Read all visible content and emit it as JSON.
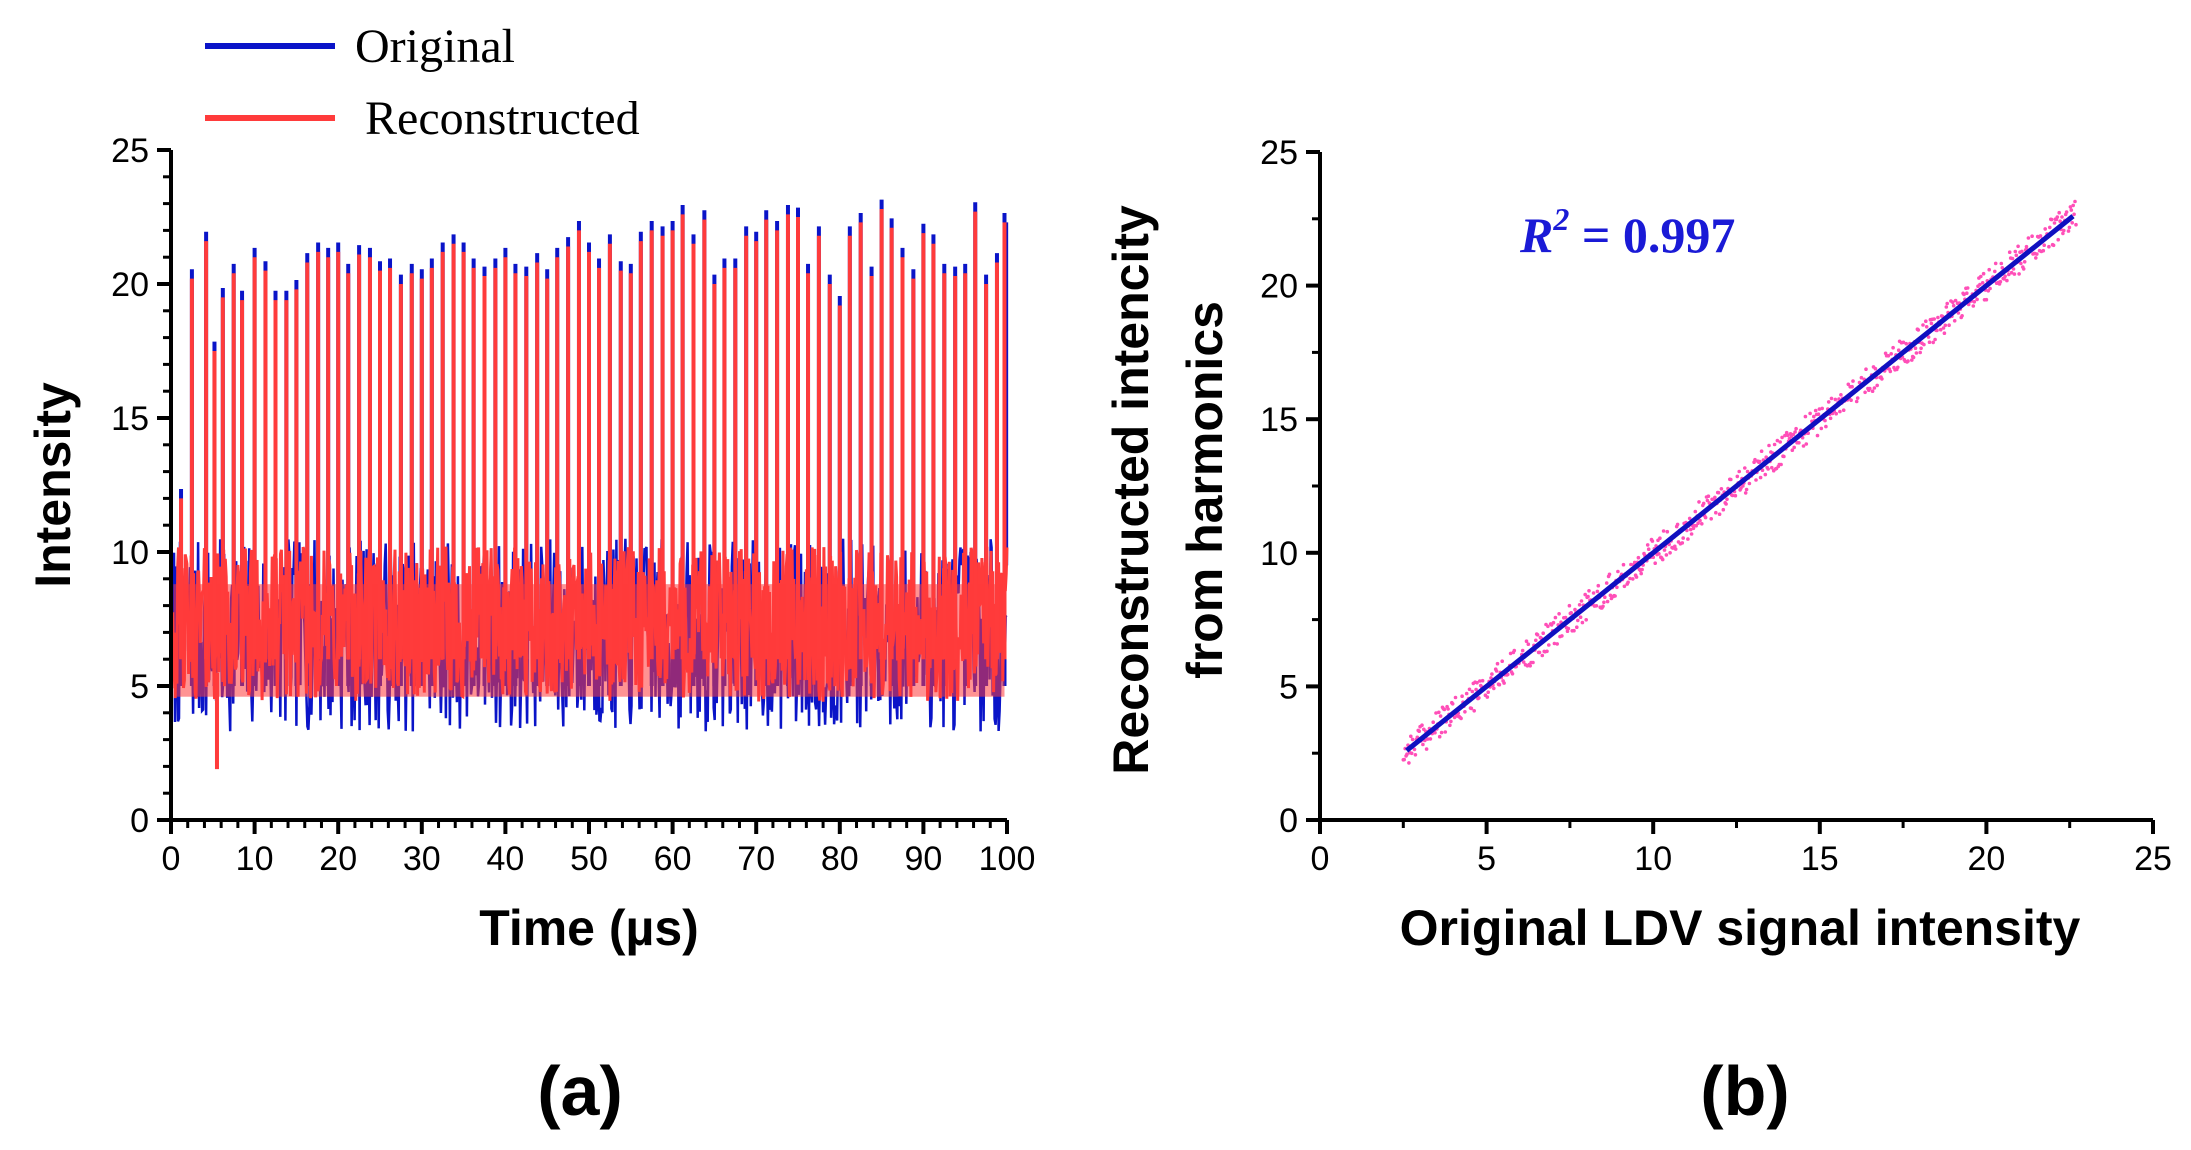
{
  "chart_data": [
    {
      "id": "a",
      "type": "line",
      "panel_label": "(a)",
      "xlabel": "Time (µs)",
      "ylabel": "Intensity",
      "xlim": [
        0,
        100
      ],
      "ylim": [
        0,
        25
      ],
      "xticks": [
        0,
        10,
        20,
        30,
        40,
        50,
        60,
        70,
        80,
        90,
        100
      ],
      "yticks": [
        0,
        5,
        10,
        15,
        20,
        25
      ],
      "legend": {
        "placement": "top-left",
        "entries": [
          {
            "name": "Original",
            "color": "#0a14c8"
          },
          {
            "name": "Reconstructed",
            "color": "#ff3b3b"
          }
        ]
      },
      "peak_times": [
        1.2,
        2.5,
        4.2,
        5.2,
        6.2,
        7.5,
        8.5,
        10.0,
        11.3,
        12.5,
        13.8,
        15.0,
        16.3,
        17.6,
        18.8,
        20.0,
        21.2,
        22.5,
        23.8,
        25.0,
        26.2,
        27.5,
        28.8,
        30.0,
        31.2,
        32.5,
        33.8,
        35.0,
        36.2,
        37.5,
        38.8,
        40.0,
        41.2,
        42.5,
        43.8,
        45.0,
        46.2,
        47.5,
        48.8,
        50.0,
        51.2,
        52.5,
        53.8,
        55.0,
        56.2,
        57.5,
        58.8,
        60.0,
        61.2,
        62.5,
        63.8,
        65.0,
        66.2,
        67.5,
        68.8,
        70.0,
        71.2,
        72.5,
        73.8,
        75.0,
        76.2,
        77.5,
        78.8,
        80.0,
        81.2,
        82.5,
        83.8,
        85.0,
        86.2,
        87.5,
        88.8,
        90.0,
        91.2,
        92.5,
        93.8,
        95.0,
        96.2,
        97.5,
        98.8,
        99.7
      ],
      "peak_values": [
        12.0,
        20.2,
        21.6,
        17.5,
        19.5,
        20.4,
        19.4,
        21.0,
        20.5,
        19.4,
        19.4,
        19.8,
        20.8,
        21.2,
        21.0,
        21.2,
        20.4,
        21.1,
        21.0,
        20.5,
        20.6,
        20.0,
        20.4,
        20.2,
        20.6,
        21.2,
        21.5,
        21.2,
        20.6,
        20.3,
        20.6,
        21.0,
        20.4,
        20.3,
        20.8,
        20.2,
        21.0,
        21.4,
        22.0,
        21.2,
        20.6,
        21.5,
        20.5,
        20.4,
        21.6,
        22.0,
        21.8,
        22.0,
        22.6,
        21.5,
        22.4,
        20.0,
        20.6,
        20.6,
        21.8,
        21.6,
        22.4,
        22.0,
        22.6,
        22.5,
        20.4,
        21.8,
        20.0,
        19.2,
        21.8,
        22.3,
        20.3,
        22.8,
        22.1,
        21.0,
        20.2,
        21.9,
        21.5,
        20.4,
        20.3,
        20.4,
        22.7,
        20.0,
        20.8,
        22.3
      ],
      "peak_notes": "Original peaks slightly exceed Reconstructed; envelope of remaining oscillations ~4-10",
      "series": [
        {
          "name": "Original",
          "color": "#0a14c8",
          "band_low": 3.0,
          "band_high": 10.5,
          "end_value": 22.3
        },
        {
          "name": "Reconstructed",
          "color": "#ff3b3b",
          "band_low": 3.8,
          "band_high": 10.2,
          "min_value": 1.9
        }
      ]
    },
    {
      "id": "b",
      "type": "scatter",
      "panel_label": "(b)",
      "xlabel": "Original LDV signal intensity",
      "ylabel_line1": "Reconstructed intencity",
      "ylabel_line2": "from harmonics",
      "xlim": [
        0,
        25
      ],
      "ylim": [
        0,
        25
      ],
      "xticks": [
        0,
        5,
        10,
        15,
        20,
        25
      ],
      "yticks": [
        0,
        5,
        10,
        15,
        20,
        25
      ],
      "annotation": {
        "base": "R",
        "exponent": "2",
        "rest": " = 0.997",
        "color": "#1a1ad6"
      },
      "fit_line": {
        "x": [
          2.6,
          22.6
        ],
        "y": [
          2.6,
          22.6
        ],
        "color": "#1010c0"
      },
      "scatter": {
        "x_range": [
          2.5,
          22.7
        ],
        "spread": 0.55,
        "color": "#ff4fb8"
      }
    }
  ]
}
